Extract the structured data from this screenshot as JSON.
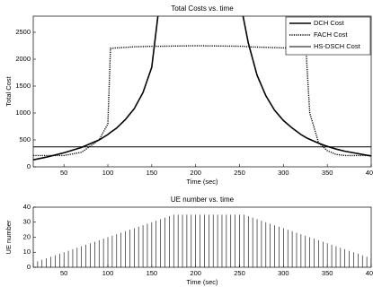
{
  "chart_data": [
    {
      "type": "line",
      "title": "Total Costs vs. time",
      "xlabel": "Time (sec)",
      "ylabel": "Total Cost",
      "x": [
        15,
        30,
        50,
        70,
        90,
        100,
        103,
        110,
        120,
        130,
        140,
        150,
        157,
        200,
        254,
        260,
        270,
        280,
        290,
        300,
        310,
        320,
        326,
        330,
        340,
        350,
        360,
        370,
        380,
        400
      ],
      "series": [
        {
          "name": "DCH Cost",
          "color": "#000000",
          "values": [
            130,
            180,
            260,
            360,
            500,
            600,
            640,
            720,
            880,
            1080,
            1380,
            1850,
            2800,
            null,
            2800,
            2300,
            1700,
            1320,
            1050,
            860,
            720,
            600,
            540,
            510,
            440,
            380,
            330,
            290,
            260,
            200
          ]
        },
        {
          "name": "FACH Cost",
          "color": "#000000",
          "values": [
            210,
            210,
            210,
            270,
            500,
            800,
            2200,
            2210,
            2220,
            2230,
            2235,
            2240,
            2240,
            2250,
            2240,
            2230,
            2225,
            2220,
            2215,
            2210,
            2205,
            2200,
            2100,
            1000,
            450,
            300,
            230,
            210,
            210,
            210
          ]
        },
        {
          "name": "HS-DSCH Cost",
          "color": "#000000",
          "values": [
            370,
            370,
            370,
            370,
            370,
            370,
            370,
            370,
            370,
            370,
            370,
            370,
            370,
            370,
            370,
            370,
            370,
            370,
            370,
            370,
            370,
            370,
            370,
            370,
            370,
            370,
            370,
            370,
            370,
            370
          ]
        }
      ],
      "xlim": [
        15,
        400
      ],
      "ylim": [
        0,
        2800
      ],
      "xticks": [
        50,
        100,
        150,
        200,
        250,
        300,
        350,
        400
      ],
      "yticks": [
        0,
        500,
        1000,
        1500,
        2000,
        2500
      ],
      "legend": "upper right"
    },
    {
      "type": "stem",
      "title": "UE number vs. time",
      "xlabel": "Time (sec)",
      "ylabel": "UE number",
      "x": [
        15,
        20,
        25,
        30,
        35,
        40,
        45,
        50,
        55,
        60,
        65,
        70,
        75,
        80,
        85,
        90,
        95,
        100,
        105,
        110,
        115,
        120,
        125,
        130,
        135,
        140,
        145,
        150,
        155,
        160,
        165,
        170,
        175,
        180,
        185,
        190,
        195,
        200,
        205,
        210,
        215,
        220,
        225,
        230,
        235,
        240,
        245,
        250,
        255,
        260,
        265,
        270,
        275,
        280,
        285,
        290,
        295,
        300,
        305,
        310,
        315,
        320,
        325,
        330,
        335,
        340,
        345,
        350,
        355,
        360,
        365,
        370,
        375,
        380,
        385,
        390,
        395,
        400
      ],
      "values": [
        3,
        4,
        5,
        6,
        7,
        8,
        9,
        10,
        11,
        12,
        13,
        14,
        15,
        16,
        17,
        18,
        19,
        20,
        21,
        22,
        23,
        24,
        25,
        26,
        27,
        28,
        29,
        30,
        31,
        32,
        33,
        34,
        35,
        35,
        35,
        35,
        35,
        35,
        35,
        35,
        35,
        35,
        35,
        35,
        35,
        35,
        35,
        35,
        35,
        34,
        33,
        32,
        31,
        30,
        29,
        28,
        27,
        26,
        25,
        24,
        23,
        22,
        21,
        20,
        19,
        18,
        17,
        16,
        15,
        14,
        13,
        12,
        11,
        10,
        9,
        8,
        7,
        6
      ],
      "color": "#000000",
      "xlim": [
        15,
        400
      ],
      "ylim": [
        0,
        40
      ],
      "xticks": [
        50,
        100,
        150,
        200,
        250,
        300,
        350,
        400
      ],
      "yticks": [
        0,
        10,
        20,
        30,
        40
      ]
    }
  ]
}
